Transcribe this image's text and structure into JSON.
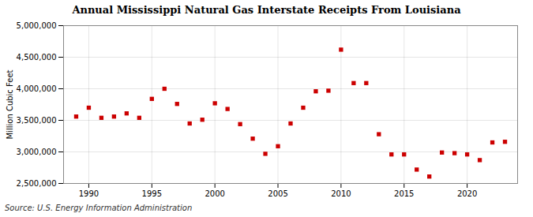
{
  "chart_data": {
    "type": "scatter",
    "title": "Annual Mississippi Natural Gas Interstate Receipts From Louisiana",
    "ylabel": "Million Cubic Feet",
    "source": "Source: U.S. Energy Information Administration",
    "x": [
      1989,
      1990,
      1991,
      1992,
      1993,
      1994,
      1995,
      1996,
      1997,
      1998,
      1999,
      2000,
      2001,
      2002,
      2003,
      2004,
      2005,
      2006,
      2007,
      2008,
      2009,
      2010,
      2011,
      2012,
      2013,
      2014,
      2015,
      2016,
      2017,
      2018,
      2019,
      2020,
      2021,
      2022,
      2023
    ],
    "values": [
      3560000,
      3700000,
      3540000,
      3560000,
      3610000,
      3540000,
      3840000,
      4000000,
      3760000,
      3450000,
      3510000,
      3770000,
      3680000,
      3440000,
      3210000,
      2970000,
      3090000,
      3450000,
      3700000,
      3960000,
      3970000,
      4620000,
      4090000,
      4090000,
      3280000,
      2960000,
      2960000,
      2720000,
      2610000,
      2990000,
      2980000,
      2960000,
      2870000,
      3150000,
      3160000
    ],
    "color": "#cc0000",
    "marker": "square",
    "xlim": [
      1988.0,
      2024.0
    ],
    "ylim": [
      2500000,
      5000000
    ],
    "xticks": [
      1990,
      1995,
      2000,
      2005,
      2010,
      2015,
      2020
    ],
    "yticks": [
      {
        "value": 2500000,
        "label": "2,500,000"
      },
      {
        "value": 3000000,
        "label": "3,000,000"
      },
      {
        "value": 3500000,
        "label": "3,500,000"
      },
      {
        "value": 4000000,
        "label": "4,000,000"
      },
      {
        "value": 4500000,
        "label": "4,500,000"
      },
      {
        "value": 5000000,
        "label": "5,000,000"
      }
    ],
    "grid": true
  }
}
